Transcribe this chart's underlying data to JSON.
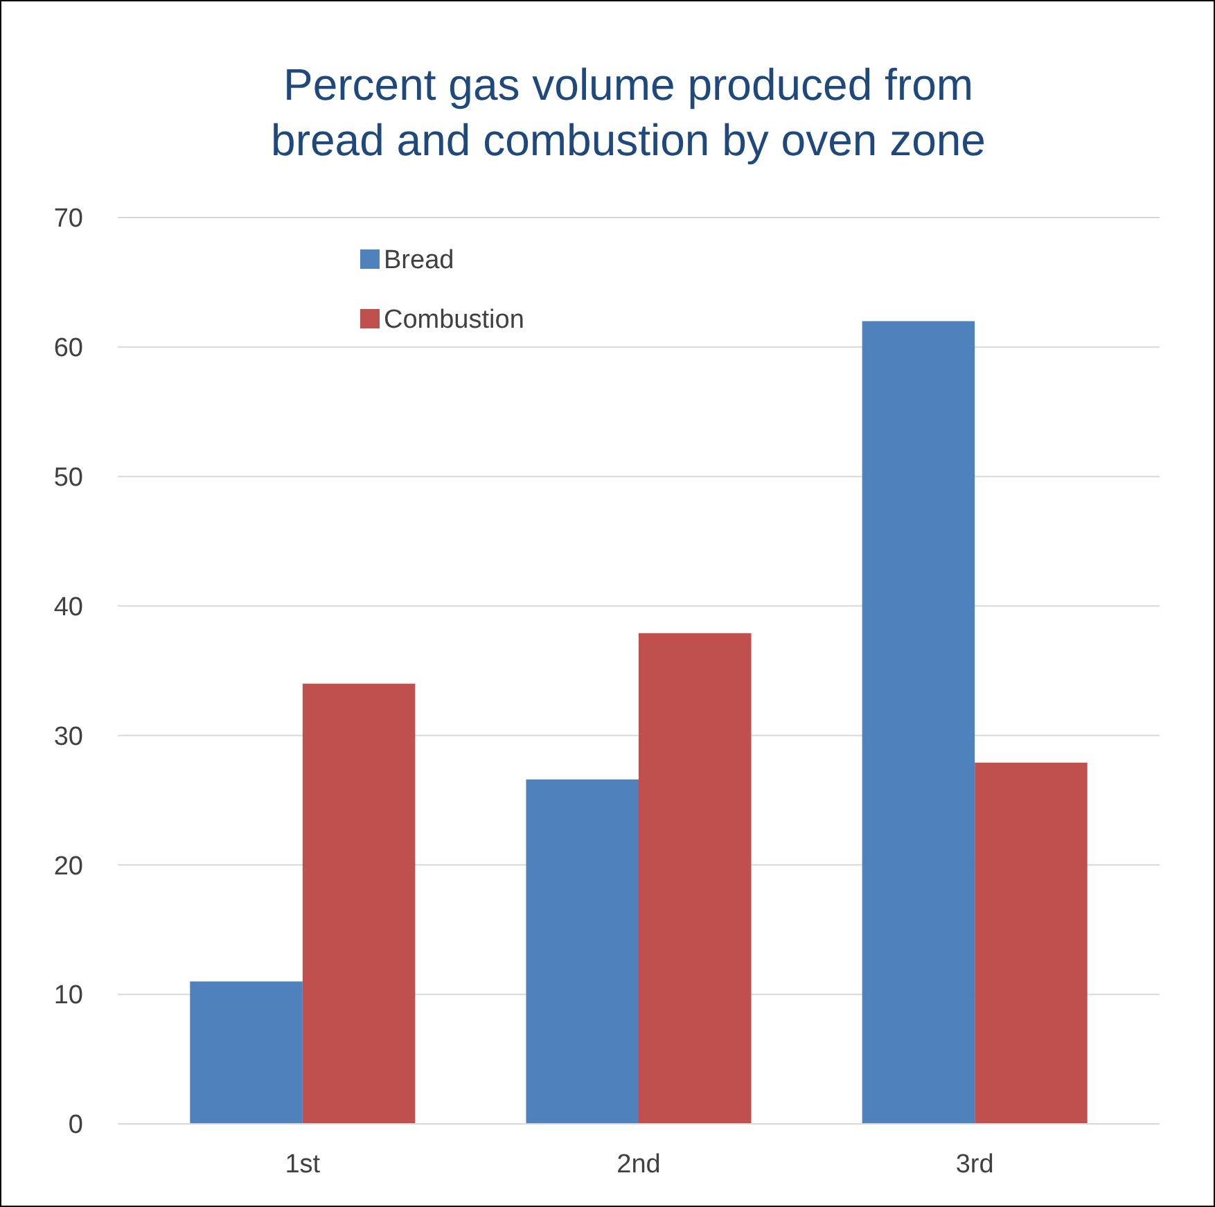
{
  "chart_data": {
    "type": "bar",
    "title": "Percent gas volume produced from bread and combustion by oven zone",
    "categories": [
      "1st",
      "2nd",
      "3rd"
    ],
    "series": [
      {
        "name": "Bread",
        "color": "#4f81bd",
        "values": [
          11,
          26.6,
          62
        ]
      },
      {
        "name": "Combustion",
        "color": "#c0504d",
        "values": [
          34,
          37.9,
          27.9
        ]
      }
    ],
    "ylim": [
      0,
      70
    ],
    "yticks": [
      0,
      10,
      20,
      30,
      40,
      50,
      60,
      70
    ],
    "grid": "y",
    "legend": "top left"
  }
}
